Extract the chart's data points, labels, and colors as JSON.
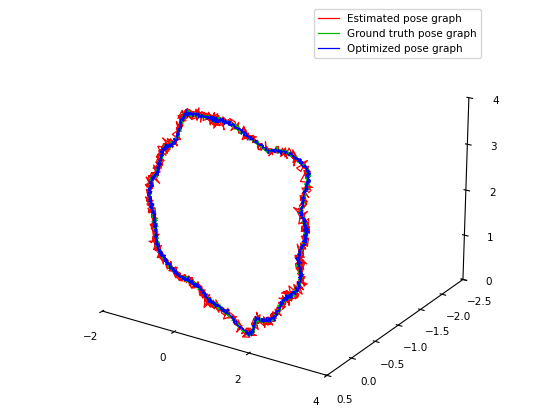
{
  "legend_labels": [
    "Estimated pose graph",
    "Ground truth pose graph",
    "Optimized pose graph"
  ],
  "colors": [
    "#ff0000",
    "#00bb00",
    "#0000ff"
  ],
  "xlim": [
    -2,
    4
  ],
  "ylim": [
    0.5,
    -2.5
  ],
  "zlim": [
    0,
    4
  ],
  "x_ticks": [
    -2,
    0,
    2,
    4
  ],
  "y_ticks": [
    0.5,
    0.0,
    -0.5,
    -1.0,
    -1.5,
    -2.0,
    -2.5
  ],
  "z_ticks": [
    0,
    1,
    2,
    3,
    4
  ],
  "elev": 22,
  "azim": -57
}
